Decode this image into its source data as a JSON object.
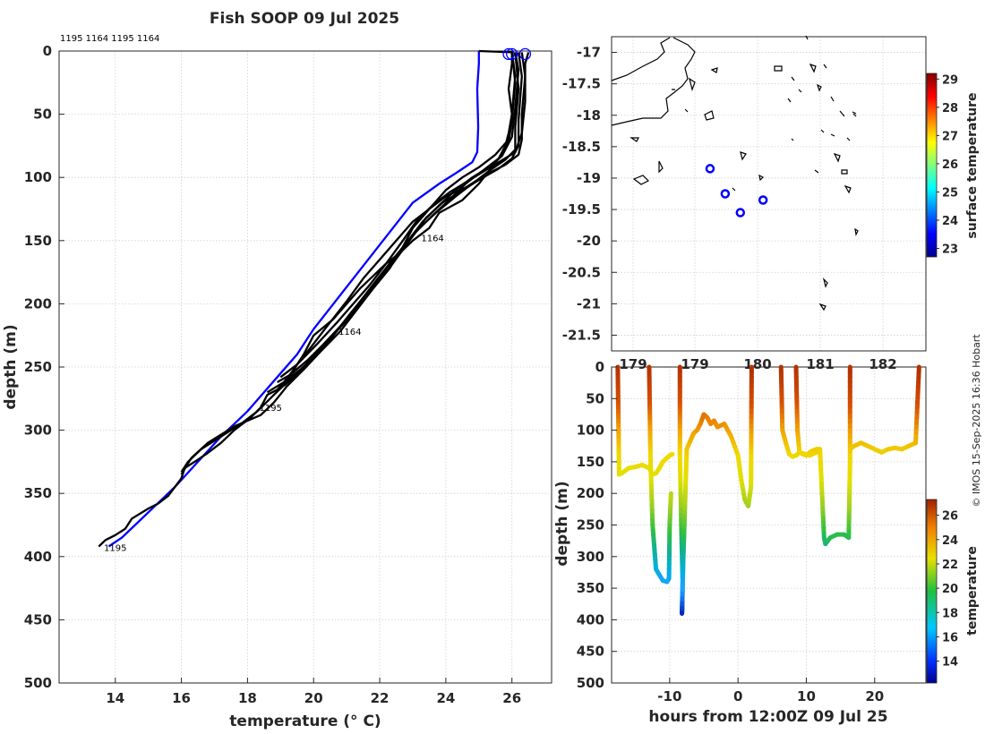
{
  "title": "Fish SOOP 09 Jul 2025",
  "header_ids": "1195 1164 1195 1164",
  "credit": "© IMOS 15-Sep-2025 16:36 Hobart",
  "colors": {
    "profile": "#000000",
    "climatology": "#0000ff",
    "marker": "#0000ff"
  },
  "chart_data": [
    {
      "type": "line",
      "title": "Fish SOOP 09 Jul 2025",
      "xlabel": "temperature (° C)",
      "ylabel": "depth (m)",
      "xlim": [
        12.3,
        27.2
      ],
      "ylim": [
        0,
        500
      ],
      "y_inverted": true,
      "x_ticks": [
        14,
        16,
        18,
        20,
        22,
        24,
        26
      ],
      "y_ticks": [
        0,
        50,
        100,
        150,
        200,
        250,
        300,
        350,
        400,
        450,
        500
      ],
      "profile_labels": [
        {
          "text": "1164",
          "temperature": 23.2,
          "depth": 147
        },
        {
          "text": "1164",
          "temperature": 20.7,
          "depth": 221
        },
        {
          "text": "1195",
          "temperature": 18.3,
          "depth": 281
        },
        {
          "text": "1195",
          "temperature": 13.6,
          "depth": 392
        }
      ],
      "climatology": {
        "name": "climatology",
        "temperature": [
          25.0,
          25.0,
          24.95,
          24.98,
          24.95,
          24.8,
          24.4,
          23.8,
          23.0,
          22.4,
          21.8,
          21.2,
          20.6,
          20.0,
          19.5,
          19.0,
          18.5,
          18.0,
          17.2,
          16.5,
          15.8,
          15.2,
          14.6,
          14.2,
          13.8
        ],
        "depth": [
          0,
          10,
          30,
          60,
          80,
          88,
          95,
          105,
          120,
          140,
          160,
          180,
          200,
          220,
          240,
          255,
          270,
          285,
          305,
          325,
          345,
          360,
          375,
          385,
          392
        ]
      },
      "surface_markers": [
        {
          "temperature": 25.9,
          "depth": 1
        },
        {
          "temperature": 26.0,
          "depth": 1
        },
        {
          "temperature": 26.4,
          "depth": 1
        }
      ],
      "profiles": [
        {
          "id": "1195",
          "temperature": [
            25.0,
            26.0,
            26.0,
            25.9,
            26.0,
            25.9,
            25.8,
            25.6,
            25.3,
            25.0,
            24.5,
            23.8,
            23.5,
            23.0,
            22.6,
            22.2,
            21.8,
            21.4,
            21.0,
            20.6,
            20.0,
            19.7,
            19.4,
            19.1,
            18.9,
            18.6,
            18.4,
            18.1,
            17.6,
            17.2,
            16.8,
            16.4,
            16.1,
            16.0,
            15.8,
            15.6,
            15.3,
            15.0,
            14.5,
            14.3,
            14.0,
            13.7,
            13.5
          ],
          "depth": [
            0,
            1,
            10,
            30,
            50,
            65,
            75,
            85,
            95,
            105,
            118,
            128,
            140,
            150,
            160,
            168,
            178,
            188,
            200,
            212,
            225,
            240,
            252,
            262,
            268,
            272,
            282,
            290,
            300,
            310,
            318,
            325,
            330,
            338,
            345,
            352,
            358,
            362,
            370,
            378,
            383,
            387,
            392
          ]
        },
        {
          "id": "1164",
          "temperature": [
            26.0,
            26.1,
            26.0,
            25.9,
            25.5,
            25.0,
            24.5,
            24.0,
            23.5,
            23.0,
            22.5,
            22.0,
            21.5,
            21.0,
            20.4,
            19.9,
            19.5,
            19.2,
            18.8,
            18.3,
            17.8,
            17.2,
            16.6,
            16.2,
            16.0
          ],
          "depth": [
            1,
            20,
            50,
            70,
            82,
            92,
            100,
            110,
            125,
            135,
            150,
            165,
            180,
            198,
            218,
            235,
            248,
            262,
            272,
            285,
            295,
            305,
            315,
            325,
            333
          ]
        },
        {
          "id": "1195",
          "temperature": [
            26.1,
            26.2,
            26.1,
            26.1,
            25.8,
            25.3,
            24.8,
            24.3,
            23.7,
            23.2,
            22.7,
            22.3,
            21.8,
            21.3,
            20.8,
            20.2,
            19.7,
            19.2,
            18.8,
            18.4,
            17.6,
            16.8,
            16.3,
            16.0
          ],
          "depth": [
            1,
            30,
            60,
            78,
            86,
            95,
            105,
            115,
            128,
            140,
            155,
            172,
            188,
            205,
            222,
            238,
            252,
            265,
            278,
            288,
            297,
            310,
            322,
            335
          ]
        },
        {
          "id": "1164",
          "temperature": [
            26.2,
            26.3,
            26.2,
            26.2,
            26.0,
            25.6,
            25.0,
            24.4,
            23.9,
            23.4,
            22.9,
            22.4,
            21.9,
            21.4,
            20.9,
            20.3,
            19.8,
            19.4,
            19.1
          ],
          "depth": [
            1,
            20,
            55,
            75,
            85,
            93,
            102,
            112,
            120,
            132,
            150,
            168,
            183,
            200,
            216,
            232,
            248,
            258,
            265
          ]
        },
        {
          "id": "1195",
          "temperature": [
            26.0,
            26.1,
            26.0,
            25.9,
            25.6,
            25.1,
            24.6,
            24.1,
            23.6,
            23.1,
            22.6,
            22.1,
            21.6,
            21.1,
            20.6,
            20.1,
            19.6,
            19.1,
            18.6
          ],
          "depth": [
            1,
            25,
            55,
            72,
            85,
            95,
            105,
            118,
            130,
            143,
            160,
            175,
            192,
            208,
            225,
            240,
            252,
            262,
            270
          ]
        },
        {
          "id": "1164",
          "temperature": [
            26.1,
            26.2,
            26.1,
            26.0,
            25.7,
            25.3,
            24.8,
            24.3,
            23.8,
            23.3,
            22.8,
            22.3,
            21.8,
            21.3,
            20.8,
            20.3,
            19.8,
            19.3,
            18.9
          ],
          "depth": [
            1,
            15,
            45,
            68,
            83,
            92,
            100,
            110,
            122,
            135,
            152,
            168,
            185,
            202,
            218,
            232,
            245,
            256,
            262
          ]
        },
        {
          "id": "1195",
          "temperature": [
            26.3,
            26.4,
            26.3,
            26.3,
            26.2,
            25.8,
            25.2,
            24.6,
            24.0,
            23.5,
            23.0,
            22.6,
            22.0,
            21.5,
            21.0,
            20.5,
            20.0,
            19.5,
            19.0
          ],
          "depth": [
            1,
            20,
            50,
            70,
            82,
            90,
            98,
            108,
            115,
            125,
            140,
            160,
            178,
            195,
            212,
            228,
            242,
            255,
            266
          ]
        },
        {
          "id": "1164",
          "temperature": [
            26.5,
            26.4,
            26.4,
            26.3,
            26.1,
            25.6,
            25.1,
            24.6,
            24.1,
            23.6,
            23.1,
            22.7,
            22.2,
            21.7,
            21.2,
            20.7,
            20.1,
            19.5,
            19.0
          ],
          "depth": [
            1,
            10,
            40,
            65,
            80,
            88,
            96,
            104,
            112,
            122,
            135,
            150,
            168,
            185,
            200,
            215,
            232,
            248,
            258
          ]
        }
      ]
    },
    {
      "type": "map",
      "ylim": [
        -21.75,
        -16.75
      ],
      "y_ticks": [
        -17,
        -17.5,
        -18,
        -18.5,
        -19,
        -19.5,
        -20,
        -20.5,
        -21,
        -21.5
      ],
      "x_ticks": [
        "179",
        "179",
        "180",
        "181",
        "182"
      ],
      "colorbar": {
        "label": "surface temperature",
        "min": 22.7,
        "max": 29.2,
        "ticks": [
          23,
          24,
          25,
          26,
          27,
          28,
          29
        ]
      },
      "stations": [
        {
          "lon": 179.85,
          "lat": -18.85
        },
        {
          "lon": 180.05,
          "lat": -19.25
        },
        {
          "lon": 180.25,
          "lat": -19.55
        },
        {
          "lon": 180.55,
          "lat": -19.35
        }
      ]
    },
    {
      "type": "scatter",
      "xlabel": "hours from 12:00Z 09 Jul 25",
      "ylabel": "depth (m)",
      "xlim": [
        -18.5,
        27.5
      ],
      "ylim": [
        0,
        500
      ],
      "y_inverted": true,
      "x_ticks": [
        -10,
        0,
        10,
        20
      ],
      "y_ticks": [
        0,
        50,
        100,
        150,
        200,
        250,
        300,
        350,
        400,
        450,
        500
      ],
      "colorbar": {
        "label": "temperature",
        "min": 12.2,
        "max": 27.3,
        "ticks": [
          14,
          16,
          18,
          20,
          22,
          24,
          26
        ]
      },
      "segments": [
        {
          "hours": [
            -17.6,
            -17.4,
            -17.0,
            -16.0,
            -15.0,
            -14.0,
            -13.0,
            -12.5,
            -12.0,
            -11.5,
            -11.0,
            -10.5,
            -10.0,
            -9.6
          ],
          "depth": [
            0,
            170,
            168,
            160,
            158,
            155,
            160,
            170,
            168,
            160,
            150,
            145,
            140,
            138
          ]
        },
        {
          "hours": [
            -13.0,
            -12.8,
            -12.5,
            -12.0,
            -11.0,
            -10.4,
            -10.1,
            -10.0,
            -9.8
          ],
          "depth": [
            0,
            150,
            250,
            320,
            338,
            340,
            335,
            250,
            200
          ]
        },
        {
          "hours": [
            -8.5,
            -8.5,
            -8.3,
            -8.1,
            -8.2,
            -8.0,
            -7.5,
            -6.5,
            -6.0,
            -5.5,
            -5.0,
            -4.5,
            -4.0,
            -3.5,
            -3.0,
            -2.0,
            -1.5,
            -1.0,
            -0.5,
            0.0
          ],
          "depth": [
            0,
            140,
            250,
            340,
            390,
            300,
            130,
            105,
            100,
            90,
            75,
            80,
            90,
            85,
            95,
            90,
            100,
            110,
            125,
            140
          ]
        },
        {
          "hours": [
            0.0,
            0.5,
            1.0,
            1.5,
            1.9,
            2.0
          ],
          "depth": [
            140,
            180,
            210,
            220,
            190,
            0
          ]
        },
        {
          "hours": [
            6.3,
            6.5,
            7.0,
            7.5,
            8.0,
            8.5,
            9.0,
            9.5,
            10.0,
            10.5,
            11.0,
            11.5,
            12.0
          ],
          "depth": [
            0,
            100,
            120,
            138,
            142,
            140,
            135,
            138,
            140,
            135,
            132,
            130,
            130
          ]
        },
        {
          "hours": [
            8.5,
            8.7,
            9.0,
            10.5,
            11.5,
            12.0,
            12.3,
            12.6,
            12.8,
            13.5,
            14.5,
            15.5,
            16.2,
            16.4,
            16.4
          ],
          "depth": [
            0,
            100,
            135,
            140,
            135,
            132,
            200,
            270,
            280,
            270,
            265,
            265,
            270,
            150,
            0
          ]
        },
        {
          "hours": [
            16.4,
            17.0,
            18.0,
            19.0,
            20.0,
            21.0,
            22.0,
            23.0,
            24.0,
            25.0,
            26.0,
            26.5
          ],
          "depth": [
            130,
            125,
            120,
            125,
            130,
            135,
            130,
            128,
            130,
            125,
            120,
            0
          ]
        }
      ]
    }
  ]
}
